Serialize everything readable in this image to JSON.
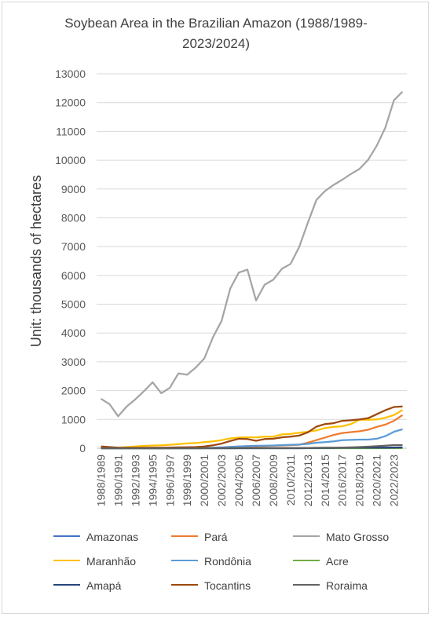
{
  "chart_data": {
    "type": "line",
    "title_lines": [
      "Soybean Area in the Brazilian Amazon (1988/1989-",
      "2023/2024)"
    ],
    "ylabel": "Unit: thousands of hectares",
    "xlabel": "",
    "ylim": [
      0,
      13000
    ],
    "yticks": [
      "0",
      "1000",
      "2000",
      "3000",
      "4000",
      "5000",
      "6000",
      "7000",
      "8000",
      "9000",
      "10000",
      "11000",
      "12000",
      "13000"
    ],
    "x": [
      "1988/1989",
      "1989/1990",
      "1990/1991",
      "1991/1992",
      "1992/1993",
      "1993/1994",
      "1994/1995",
      "1995/1996",
      "1996/1997",
      "1997/1998",
      "1998/1999",
      "1999/2000",
      "2000/2001",
      "2001/2002",
      "2002/2003",
      "2003/2004",
      "2004/2005",
      "2005/2006",
      "2006/2007",
      "2007/2008",
      "2008/2009",
      "2009/2010",
      "2010/2011",
      "2011/2012",
      "2012/2013",
      "2013/2014",
      "2014/2015",
      "2015/2016",
      "2016/2017",
      "2017/2018",
      "2018/2019",
      "2019/2020",
      "2020/2021",
      "2021/2022",
      "2022/2023",
      "2023/2024"
    ],
    "xtick_labels": [
      "1988/1989",
      "1990/1991",
      "1992/1993",
      "1994/1995",
      "1996/1997",
      "1998/1999",
      "2000/2001",
      "2002/2003",
      "2004/2005",
      "2006/2007",
      "2008/2009",
      "2010/2011",
      "2012/2013",
      "2014/2015",
      "2016/2017",
      "2018/2019",
      "2020/2021",
      "2022/2023"
    ],
    "grid": true,
    "legend_position": "bottom",
    "series": [
      {
        "name": "Amazonas",
        "color": "#4472c4",
        "values": [
          0,
          0,
          0,
          0,
          0,
          0,
          0,
          0,
          0,
          0,
          0,
          0,
          0,
          0,
          0,
          0,
          2,
          3,
          4,
          4,
          4,
          5,
          5,
          5,
          6,
          7,
          8,
          8,
          8,
          8,
          9,
          9,
          10,
          10,
          12,
          12
        ]
      },
      {
        "name": "Pará",
        "color": "#ed7d31",
        "values": [
          0,
          0,
          0,
          0,
          0,
          0,
          0,
          0,
          0,
          2,
          3,
          5,
          8,
          12,
          20,
          35,
          60,
          70,
          70,
          75,
          85,
          95,
          105,
          120,
          190,
          280,
          370,
          460,
          530,
          560,
          590,
          640,
          740,
          820,
          950,
          1150
        ]
      },
      {
        "name": "Mato Grosso",
        "color": "#a5a5a5",
        "values": [
          1720,
          1530,
          1110,
          1450,
          1700,
          1980,
          2290,
          1910,
          2100,
          2600,
          2550,
          2800,
          3120,
          3850,
          4420,
          5540,
          6100,
          6200,
          5130,
          5680,
          5850,
          6230,
          6400,
          6980,
          7820,
          8620,
          8930,
          9140,
          9320,
          9520,
          9700,
          10010,
          10500,
          11130,
          12080,
          12380
        ]
      },
      {
        "name": "Maranhão",
        "color": "#ffc000",
        "values": [
          10,
          15,
          25,
          40,
          60,
          80,
          95,
          100,
          120,
          145,
          165,
          180,
          210,
          240,
          280,
          340,
          370,
          380,
          380,
          400,
          400,
          480,
          500,
          540,
          570,
          620,
          700,
          740,
          760,
          840,
          990,
          990,
          1000,
          1060,
          1150,
          1330
        ]
      },
      {
        "name": "Rondônia",
        "color": "#5b9bd5",
        "values": [
          0,
          0,
          0,
          0,
          0,
          0,
          0,
          0,
          2,
          5,
          10,
          12,
          15,
          20,
          30,
          45,
          60,
          75,
          85,
          90,
          95,
          110,
          120,
          130,
          150,
          190,
          210,
          240,
          280,
          290,
          300,
          300,
          330,
          420,
          570,
          660
        ]
      },
      {
        "name": "Acre",
        "color": "#70ad47",
        "values": [
          0,
          0,
          0,
          0,
          0,
          0,
          0,
          0,
          0,
          0,
          0,
          0,
          0,
          0,
          0,
          0,
          0,
          0,
          0,
          0,
          0,
          0,
          0,
          0,
          0,
          0,
          0,
          0,
          0,
          0,
          1,
          1,
          1,
          2,
          2,
          2
        ]
      },
      {
        "name": "Amapá",
        "color": "#264478",
        "values": [
          0,
          0,
          0,
          0,
          0,
          0,
          0,
          0,
          0,
          0,
          0,
          0,
          0,
          0,
          0,
          0,
          0,
          0,
          0,
          0,
          0,
          0,
          0,
          0,
          3,
          8,
          10,
          12,
          15,
          18,
          20,
          22,
          22,
          22,
          25,
          28
        ]
      },
      {
        "name": "Tocantins",
        "color": "#9e480e",
        "values": [
          60,
          40,
          20,
          15,
          15,
          15,
          20,
          20,
          25,
          30,
          35,
          40,
          60,
          100,
          160,
          250,
          330,
          320,
          260,
          320,
          330,
          380,
          400,
          440,
          550,
          750,
          840,
          870,
          950,
          970,
          1000,
          1040,
          1180,
          1320,
          1430,
          1450
        ]
      },
      {
        "name": "Roraima",
        "color": "#636363",
        "values": [
          0,
          0,
          0,
          0,
          0,
          0,
          0,
          0,
          0,
          0,
          0,
          0,
          2,
          5,
          8,
          10,
          12,
          10,
          5,
          5,
          5,
          5,
          8,
          10,
          12,
          15,
          18,
          20,
          25,
          30,
          40,
          55,
          70,
          90,
          110,
          110
        ]
      }
    ]
  }
}
